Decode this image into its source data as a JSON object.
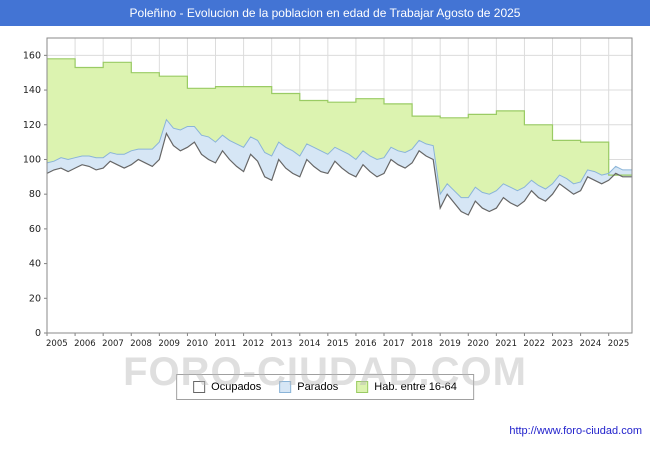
{
  "header": {
    "title": "Poleñino - Evolucion de la poblacion en edad de Trabajar Agosto de 2025",
    "bg": "#4374d4"
  },
  "watermark": "FORO-CIUDAD.COM",
  "footer": {
    "url": "http://www.foro-ciudad.com"
  },
  "legend": {
    "items": [
      {
        "label": "Ocupados",
        "fill": "#ffffff",
        "stroke": "#666666"
      },
      {
        "label": "Parados",
        "fill": "#d6e6f5",
        "stroke": "#8ab4d8"
      },
      {
        "label": "Hab. entre 16-64",
        "fill": "#dcf3b0",
        "stroke": "#9acb64"
      }
    ]
  },
  "chart_data": {
    "type": "area",
    "title": "Poleñino - Evolucion de la poblacion en edad de Trabajar Agosto de 2025",
    "xlabel": "",
    "ylabel": "",
    "x_start": 2005,
    "x_end": 2025.83,
    "ylim": [
      0,
      170
    ],
    "yticks": [
      0,
      20,
      40,
      60,
      80,
      100,
      120,
      140,
      160
    ],
    "xticks": [
      2005,
      2006,
      2007,
      2008,
      2009,
      2010,
      2011,
      2012,
      2013,
      2014,
      2015,
      2016,
      2017,
      2018,
      2019,
      2020,
      2021,
      2022,
      2023,
      2024,
      2025
    ],
    "grid": true,
    "legend_position": "bottom",
    "series": [
      {
        "name": "Hab. entre 16-64",
        "render": "step-by-year",
        "x_start": 2005,
        "x_step": 1,
        "values": [
          158,
          153,
          156,
          150,
          148,
          141,
          142,
          142,
          138,
          134,
          133,
          135,
          132,
          125,
          124,
          126,
          128,
          120,
          111,
          110,
          91
        ],
        "fill": "#dcf3b0",
        "stroke": "#9acb64"
      },
      {
        "name": "Ocupados",
        "render": "line-area",
        "x_start": 2005,
        "x_step": 0.25,
        "values": [
          92,
          94,
          95,
          93,
          95,
          97,
          96,
          94,
          95,
          99,
          97,
          95,
          97,
          100,
          98,
          96,
          100,
          115,
          108,
          105,
          107,
          110,
          103,
          100,
          98,
          105,
          100,
          96,
          93,
          103,
          99,
          90,
          88,
          100,
          95,
          92,
          90,
          100,
          96,
          93,
          92,
          99,
          95,
          92,
          90,
          97,
          93,
          90,
          92,
          100,
          97,
          95,
          98,
          105,
          102,
          100,
          72,
          80,
          75,
          70,
          68,
          76,
          72,
          70,
          72,
          78,
          75,
          73,
          76,
          82,
          78,
          76,
          80,
          86,
          83,
          80,
          82,
          90,
          88,
          86,
          88,
          92,
          90
        ],
        "fill": "#ffffff",
        "stroke": "#666666"
      },
      {
        "name": "Parados",
        "render": "stacked-on-ocupados",
        "x_start": 2005,
        "x_step": 0.25,
        "values": [
          6,
          5,
          6,
          7,
          6,
          5,
          6,
          7,
          6,
          5,
          6,
          8,
          8,
          6,
          8,
          10,
          10,
          8,
          10,
          12,
          12,
          9,
          11,
          13,
          12,
          9,
          11,
          13,
          14,
          10,
          12,
          14,
          14,
          10,
          12,
          13,
          12,
          9,
          11,
          12,
          11,
          8,
          10,
          11,
          10,
          8,
          9,
          10,
          9,
          7,
          8,
          9,
          8,
          6,
          7,
          8,
          8,
          6,
          7,
          8,
          10,
          8,
          9,
          10,
          10,
          8,
          9,
          9,
          8,
          6,
          7,
          7,
          6,
          5,
          6,
          6,
          5,
          4,
          5,
          5,
          4,
          4,
          4
        ],
        "fill": "#d6e6f5",
        "stroke": "#8ab4d8"
      }
    ]
  }
}
